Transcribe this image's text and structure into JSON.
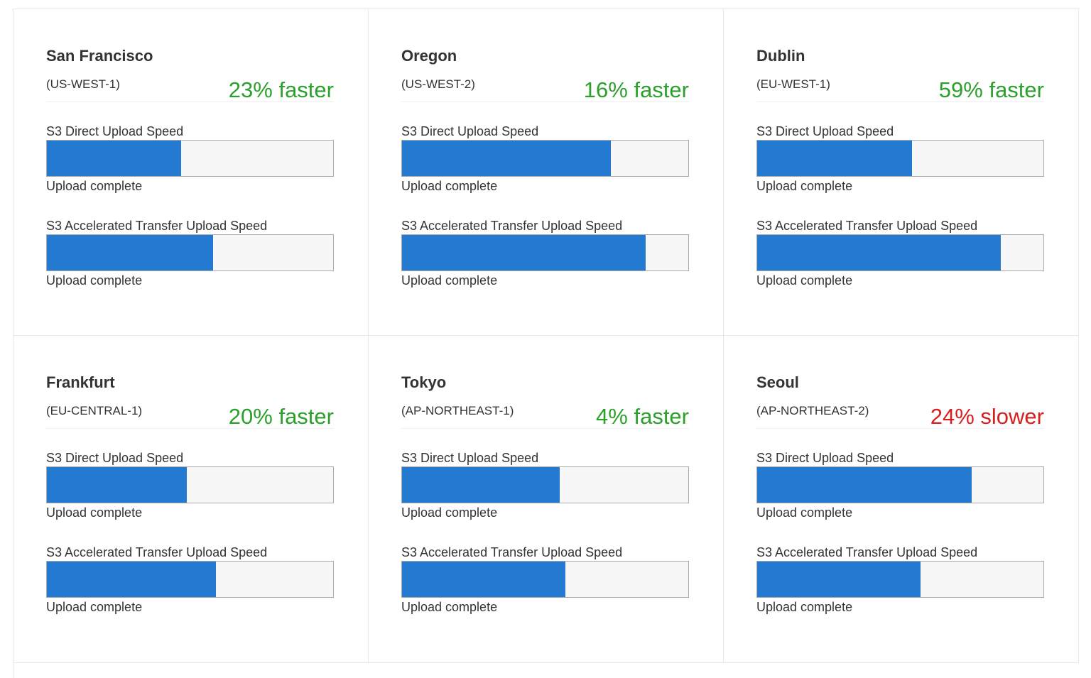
{
  "regions": [
    {
      "name": "San Francisco",
      "code": "(US-WEST-1)",
      "comparison": "23% faster",
      "comparison_color": "#2ca02c",
      "tests": [
        {
          "label": "S3 Direct Upload Speed",
          "progress": 0.47,
          "status": "Upload complete"
        },
        {
          "label": "S3 Accelerated Transfer Upload Speed",
          "progress": 0.58,
          "status": "Upload complete"
        }
      ]
    },
    {
      "name": "Oregon",
      "code": "(US-WEST-2)",
      "comparison": "16% faster",
      "comparison_color": "#2ca02c",
      "tests": [
        {
          "label": "S3 Direct Upload Speed",
          "progress": 0.73,
          "status": "Upload complete"
        },
        {
          "label": "S3 Accelerated Transfer Upload Speed",
          "progress": 0.85,
          "status": "Upload complete"
        }
      ]
    },
    {
      "name": "Dublin",
      "code": "(EU-WEST-1)",
      "comparison": "59% faster",
      "comparison_color": "#2ca02c",
      "tests": [
        {
          "label": "S3 Direct Upload Speed",
          "progress": 0.54,
          "status": "Upload complete"
        },
        {
          "label": "S3 Accelerated Transfer Upload Speed",
          "progress": 0.85,
          "status": "Upload complete"
        }
      ]
    },
    {
      "name": "Frankfurt",
      "code": "(EU-CENTRAL-1)",
      "comparison": "20% faster",
      "comparison_color": "#2ca02c",
      "tests": [
        {
          "label": "S3 Direct Upload Speed",
          "progress": 0.49,
          "status": "Upload complete"
        },
        {
          "label": "S3 Accelerated Transfer Upload Speed",
          "progress": 0.59,
          "status": "Upload complete"
        }
      ]
    },
    {
      "name": "Tokyo",
      "code": "(AP-NORTHEAST-1)",
      "comparison": "4% faster",
      "comparison_color": "#2ca02c",
      "tests": [
        {
          "label": "S3 Direct Upload Speed",
          "progress": 0.55,
          "status": "Upload complete"
        },
        {
          "label": "S3 Accelerated Transfer Upload Speed",
          "progress": 0.57,
          "status": "Upload complete"
        }
      ]
    },
    {
      "name": "Seoul",
      "code": "(AP-NORTHEAST-2)",
      "comparison": "24% slower",
      "comparison_color": "#d62020",
      "tests": [
        {
          "label": "S3 Direct Upload Speed",
          "progress": 0.75,
          "status": "Upload complete"
        },
        {
          "label": "S3 Accelerated Transfer Upload Speed",
          "progress": 0.57,
          "status": "Upload complete"
        }
      ]
    }
  ],
  "bar_color": "#2479d0"
}
